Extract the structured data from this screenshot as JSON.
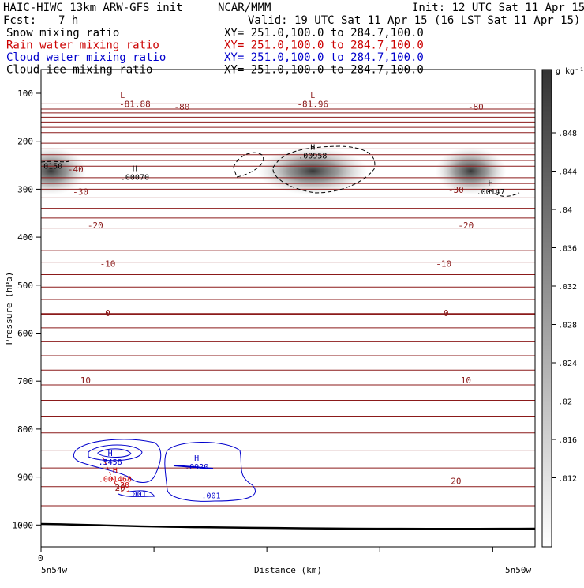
{
  "header": {
    "model": "HAIC-HIWC 13km ARW-GFS init",
    "org": "NCAR/MMM",
    "init": "Init: 12 UTC Sat 11 Apr 15",
    "fcst_label": "Fcst:",
    "fcst_value": "7 h",
    "valid": "Valid: 19 UTC Sat 11 Apr 15 (16 LST Sat 11 Apr 15)"
  },
  "fields": [
    {
      "name": "Snow mixing ratio",
      "xy": "XY= 251.0,100.0 to 284.7,100.0",
      "color": "#000000"
    },
    {
      "name": "Rain water mixing ratio",
      "xy": "XY= 251.0,100.0 to 284.7,100.0",
      "color": "#cc0000"
    },
    {
      "name": "Cloud water mixing ratio",
      "xy": "XY= 251.0,100.0 to 284.7,100.0",
      "color": "#0000cc"
    },
    {
      "name": "Cloud ice mixing ratio",
      "xy": "XY= 251.0,100.0 to 284.7,100.0",
      "color": "#000000"
    }
  ],
  "colorbar": {
    "unit": "g kg⁻¹",
    "ticks": [
      ".048",
      ".044",
      ".04",
      ".036",
      ".032",
      ".028",
      ".024",
      ".02",
      ".016",
      ".012"
    ]
  },
  "chart_data": {
    "type": "cross-section",
    "ylabel": "Pressure (hPa)",
    "xlabel": "Distance (km)",
    "x_origin_label": "0",
    "x_left_label": "5n54w",
    "x_right_label": "5n50w",
    "y_ticks": [
      100,
      200,
      300,
      400,
      500,
      600,
      700,
      800,
      900,
      1000
    ],
    "ylim": [
      1050,
      70
    ],
    "xlim": [
      0,
      1
    ],
    "x_tick_positions": [
      0,
      0.2286,
      0.4571,
      0.6857,
      0.9143
    ],
    "temperature_labels": [
      {
        "text": "-81.88",
        "x": 0.19,
        "p": 122
      },
      {
        "text": "-80",
        "x": 0.285,
        "p": 128
      },
      {
        "text": "-81.96",
        "x": 0.55,
        "p": 122
      },
      {
        "text": "-80",
        "x": 0.88,
        "p": 128
      },
      {
        "text": "-40",
        "x": 0.07,
        "p": 258
      },
      {
        "text": "-30",
        "x": 0.08,
        "p": 305
      },
      {
        "text": "-30",
        "x": 0.84,
        "p": 301
      },
      {
        "text": "-20",
        "x": 0.11,
        "p": 375
      },
      {
        "text": "-20",
        "x": 0.86,
        "p": 375
      },
      {
        "text": "-10",
        "x": 0.135,
        "p": 455
      },
      {
        "text": "-10",
        "x": 0.815,
        "p": 455
      },
      {
        "text": "0",
        "x": 0.135,
        "p": 558
      },
      {
        "text": "0",
        "x": 0.82,
        "p": 558
      },
      {
        "text": "10",
        "x": 0.09,
        "p": 698
      },
      {
        "text": "10",
        "x": 0.86,
        "p": 698
      },
      {
        "text": "20",
        "x": 0.16,
        "p": 922
      },
      {
        "text": "20",
        "x": 0.84,
        "p": 908
      }
    ],
    "extrema": [
      {
        "kind": "L",
        "value": "-81.88",
        "x": 0.165,
        "p": 110,
        "color": "#8b1a1a"
      },
      {
        "kind": "L",
        "value": "-81.96",
        "x": 0.55,
        "p": 110,
        "color": "#8b1a1a"
      },
      {
        "kind": "H",
        "value": ".00070",
        "x": 0.19,
        "p": 262,
        "color": "#000000"
      },
      {
        "kind": "H",
        "value": ".00958",
        "x": 0.55,
        "p": 218,
        "color": "#000000"
      },
      {
        "kind": "H",
        "value": ".00147",
        "x": 0.91,
        "p": 293,
        "color": "#000000"
      },
      {
        "kind": "H",
        "value": ".5458",
        "x": 0.14,
        "p": 856,
        "color": "#0000cc"
      },
      {
        "kind": "H",
        "value": ".0920",
        "x": 0.315,
        "p": 866,
        "color": "#0000cc"
      },
      {
        "kind": "H",
        "value": ".001468",
        "x": 0.15,
        "p": 892,
        "color": "#cc0000"
      }
    ],
    "edge_labels": [
      {
        "text": "0150",
        "x": 0.005,
        "p": 257,
        "color": "#000000"
      },
      {
        "text": ".001",
        "x": 0.175,
        "p": 941,
        "color": "#0000cc"
      },
      {
        "text": ".001",
        "x": 0.325,
        "p": 944,
        "color": "#0000cc"
      },
      {
        "text": "20",
        "x": 0.16,
        "p": 922,
        "color": "#cc0000"
      }
    ],
    "snow_max": [
      {
        "x": 0.02,
        "p": 262,
        "peak": 0.045
      },
      {
        "x": 0.55,
        "p": 262,
        "peak": 0.05
      },
      {
        "x": 0.87,
        "p": 262,
        "peak": 0.046
      }
    ]
  }
}
